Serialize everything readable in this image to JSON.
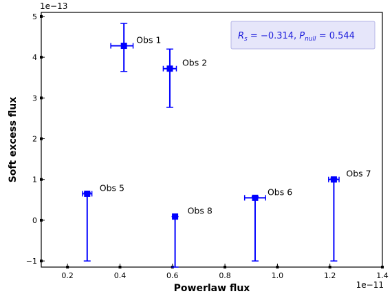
{
  "chart_data": {
    "type": "scatter",
    "xlabel": "Powerlaw flux",
    "ylabel": "Soft excess flux",
    "x_offset_label": "1e−11",
    "y_offset_label": "1e−13",
    "xlim": [
      0.1,
      1.4
    ],
    "ylim": [
      -1.15,
      5.1
    ],
    "xticks": [
      0.2,
      0.4,
      0.6,
      0.8,
      1.0,
      1.2,
      1.4
    ],
    "xtick_labels": [
      "0.2",
      "0.4",
      "0.6",
      "0.8",
      "1.0",
      "1.2",
      "1.4"
    ],
    "yticks": [
      -1,
      0,
      1,
      2,
      3,
      4,
      5
    ],
    "ytick_labels": [
      "−1",
      "0",
      "1",
      "2",
      "3",
      "4",
      "5"
    ],
    "grid": false,
    "marker_color": "#0000ff",
    "annotation": {
      "rs_value": "−0.314",
      "pnull_value": "0.544",
      "text_color": "#1a1adb",
      "box_fill": "#e6e6fa",
      "box_edge": "#b4b4e6",
      "placement": "top-right"
    },
    "points": [
      {
        "label": "Obs 1",
        "x": 0.415,
        "y": 4.28,
        "xerr": [
          0.05,
          0.035
        ],
        "yerr": [
          0.63,
          0.55
        ]
      },
      {
        "label": "Obs 2",
        "x": 0.59,
        "y": 3.72,
        "xerr": [
          0.025,
          0.025
        ],
        "yerr": [
          0.95,
          0.48
        ]
      },
      {
        "label": "Obs 5",
        "x": 0.275,
        "y": 0.65,
        "xerr": [
          0.018,
          0.018
        ],
        "yerr": [
          1.65,
          0.03
        ]
      },
      {
        "label": "Obs 8",
        "x": 0.61,
        "y": 0.09,
        "xerr": [
          0.0,
          0.0
        ],
        "yerr": [
          1.24,
          0.0
        ]
      },
      {
        "label": "Obs 6",
        "x": 0.915,
        "y": 0.55,
        "xerr": [
          0.04,
          0.04
        ],
        "yerr": [
          1.55,
          0.03
        ]
      },
      {
        "label": "Obs 7",
        "x": 1.215,
        "y": 1.0,
        "xerr": [
          0.02,
          0.02
        ],
        "yerr": [
          2.0,
          0.03
        ]
      }
    ]
  }
}
